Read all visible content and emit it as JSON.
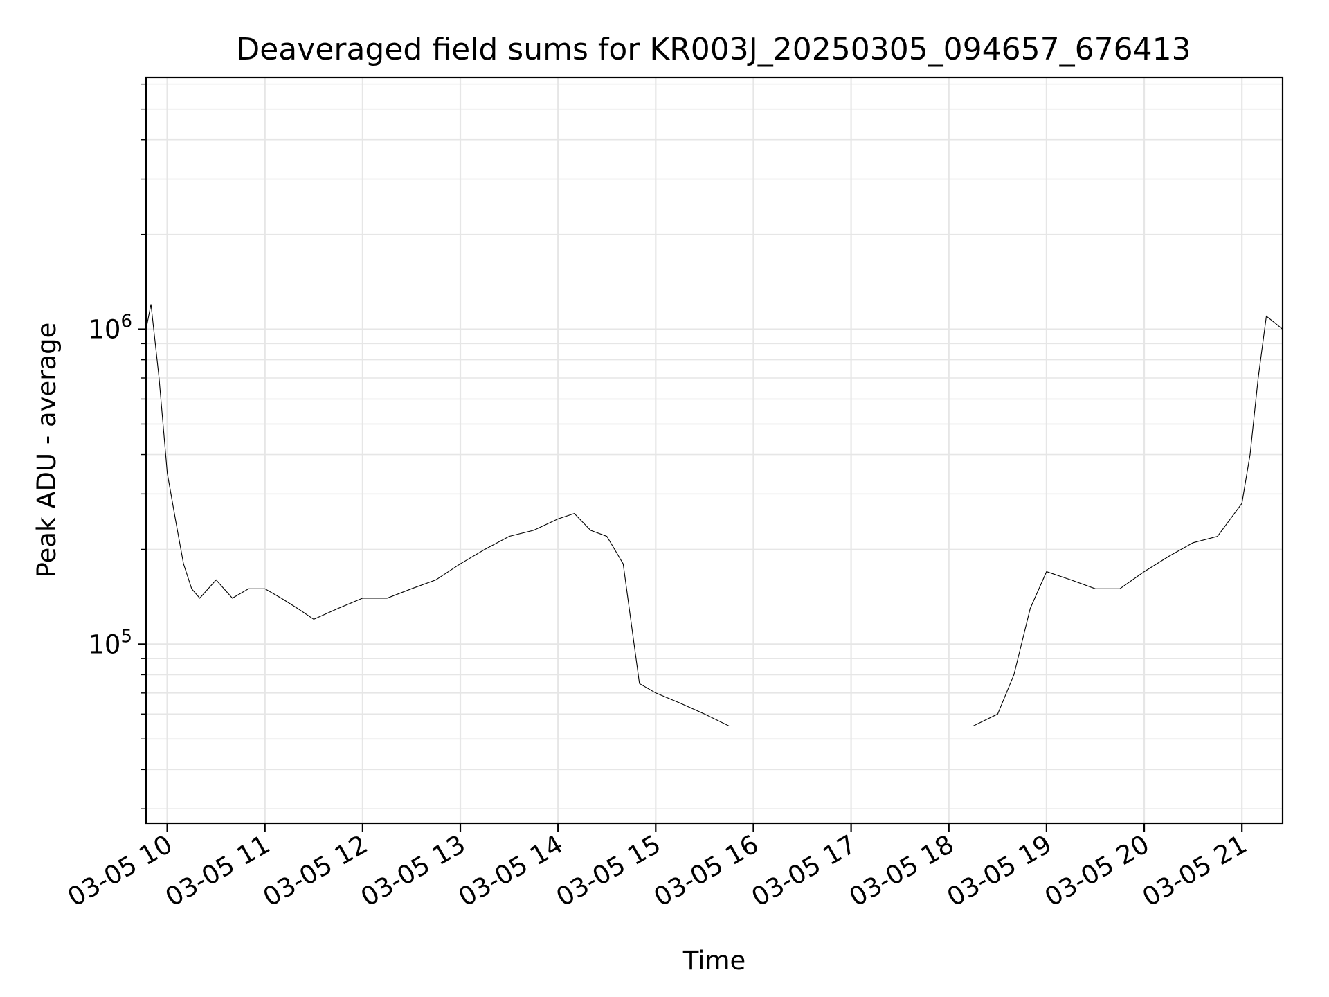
{
  "chart_data": {
    "type": "line",
    "title": "Deaveraged field sums for KR003J_20250305_094657_676413",
    "xlabel": "Time",
    "ylabel": "Peak ADU - average",
    "yscale": "log",
    "ylim": [
      27000,
      6300000
    ],
    "xlim": [
      "2025-03-05 09:47",
      "2025-03-05 21:25"
    ],
    "grid": true,
    "x_ticks": [
      {
        "date": "2025-03-05 10:00",
        "label": "03-05 10"
      },
      {
        "date": "2025-03-05 11:00",
        "label": "03-05 11"
      },
      {
        "date": "2025-03-05 12:00",
        "label": "03-05 12"
      },
      {
        "date": "2025-03-05 13:00",
        "label": "03-05 13"
      },
      {
        "date": "2025-03-05 14:00",
        "label": "03-05 14"
      },
      {
        "date": "2025-03-05 15:00",
        "label": "03-05 15"
      },
      {
        "date": "2025-03-05 16:00",
        "label": "03-05 16"
      },
      {
        "date": "2025-03-05 17:00",
        "label": "03-05 17"
      },
      {
        "date": "2025-03-05 18:00",
        "label": "03-05 18"
      },
      {
        "date": "2025-03-05 19:00",
        "label": "03-05 19"
      },
      {
        "date": "2025-03-05 20:00",
        "label": "03-05 20"
      },
      {
        "date": "2025-03-05 21:00",
        "label": "03-05 21"
      }
    ],
    "y_ticks": [
      {
        "value": 100000,
        "mantissa": "10",
        "exponent": "5"
      },
      {
        "value": 1000000,
        "mantissa": "10",
        "exponent": "6"
      }
    ],
    "series_color": "#000000",
    "series": [
      {
        "x": [
          "2025-03-05 09:47",
          "2025-03-05 09:50",
          "2025-03-05 09:55",
          "2025-03-05 10:00",
          "2025-03-05 10:05",
          "2025-03-05 10:10",
          "2025-03-05 10:15",
          "2025-03-05 10:20",
          "2025-03-05 10:30",
          "2025-03-05 10:40",
          "2025-03-05 10:50",
          "2025-03-05 11:00",
          "2025-03-05 11:10",
          "2025-03-05 11:20",
          "2025-03-05 11:30",
          "2025-03-05 11:45",
          "2025-03-05 12:00",
          "2025-03-05 12:15",
          "2025-03-05 12:30",
          "2025-03-05 12:45",
          "2025-03-05 13:00",
          "2025-03-05 13:15",
          "2025-03-05 13:30",
          "2025-03-05 13:45",
          "2025-03-05 14:00",
          "2025-03-05 14:10",
          "2025-03-05 14:20",
          "2025-03-05 14:30",
          "2025-03-05 14:40",
          "2025-03-05 14:50",
          "2025-03-05 15:00",
          "2025-03-05 15:15",
          "2025-03-05 15:30",
          "2025-03-05 15:45",
          "2025-03-05 16:00",
          "2025-03-05 16:15",
          "2025-03-05 16:30",
          "2025-03-05 16:45",
          "2025-03-05 17:00",
          "2025-03-05 17:15",
          "2025-03-05 17:30",
          "2025-03-05 17:45",
          "2025-03-05 18:00",
          "2025-03-05 18:15",
          "2025-03-05 18:30",
          "2025-03-05 18:40",
          "2025-03-05 18:50",
          "2025-03-05 19:00",
          "2025-03-05 19:15",
          "2025-03-05 19:30",
          "2025-03-05 19:45",
          "2025-03-05 20:00",
          "2025-03-05 20:15",
          "2025-03-05 20:30",
          "2025-03-05 20:45",
          "2025-03-05 21:00",
          "2025-03-05 21:05",
          "2025-03-05 21:10",
          "2025-03-05 21:15",
          "2025-03-05 21:20",
          "2025-03-05 21:25"
        ],
        "y": [
          1000000,
          1200000,
          700000,
          350000,
          250000,
          180000,
          150000,
          140000,
          160000,
          140000,
          150000,
          150000,
          140000,
          130000,
          120000,
          130000,
          140000,
          140000,
          150000,
          160000,
          180000,
          200000,
          220000,
          230000,
          250000,
          260000,
          230000,
          220000,
          180000,
          75000,
          70000,
          65000,
          60000,
          55000,
          55000,
          55000,
          55000,
          55000,
          55000,
          55000,
          55000,
          55000,
          55000,
          55000,
          60000,
          80000,
          130000,
          170000,
          160000,
          150000,
          150000,
          170000,
          190000,
          210000,
          220000,
          280000,
          400000,
          700000,
          1100000,
          1050000,
          1000000
        ]
      }
    ]
  }
}
